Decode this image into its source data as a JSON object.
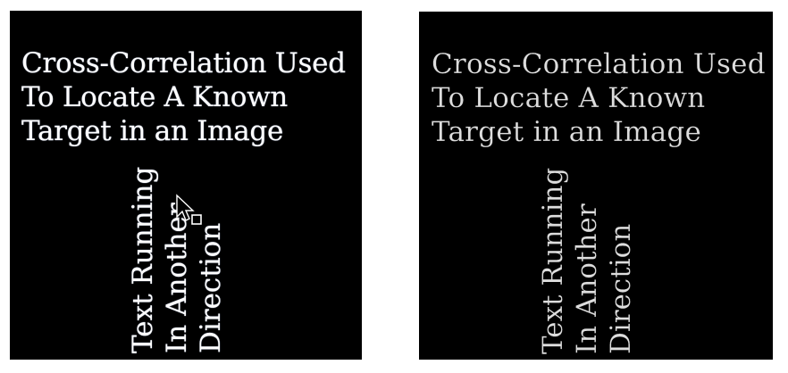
{
  "panels": {
    "left": {
      "title_lines": [
        "Cross-Correlation Used",
        "To Locate A Known",
        "Target in an Image"
      ],
      "vertical_lines": [
        "Text Running",
        "In Another",
        "Direction"
      ]
    },
    "right": {
      "title_lines": [
        "Cross-Correlation Used",
        "To Locate A Known",
        "Target in an Image"
      ],
      "vertical_lines": [
        "Text Running",
        "In Another",
        "Direction"
      ]
    }
  },
  "colors": {
    "background": "#000000",
    "text": "#ffffff"
  },
  "icons": {
    "cursor": "arrow-cursor-with-box-icon"
  }
}
